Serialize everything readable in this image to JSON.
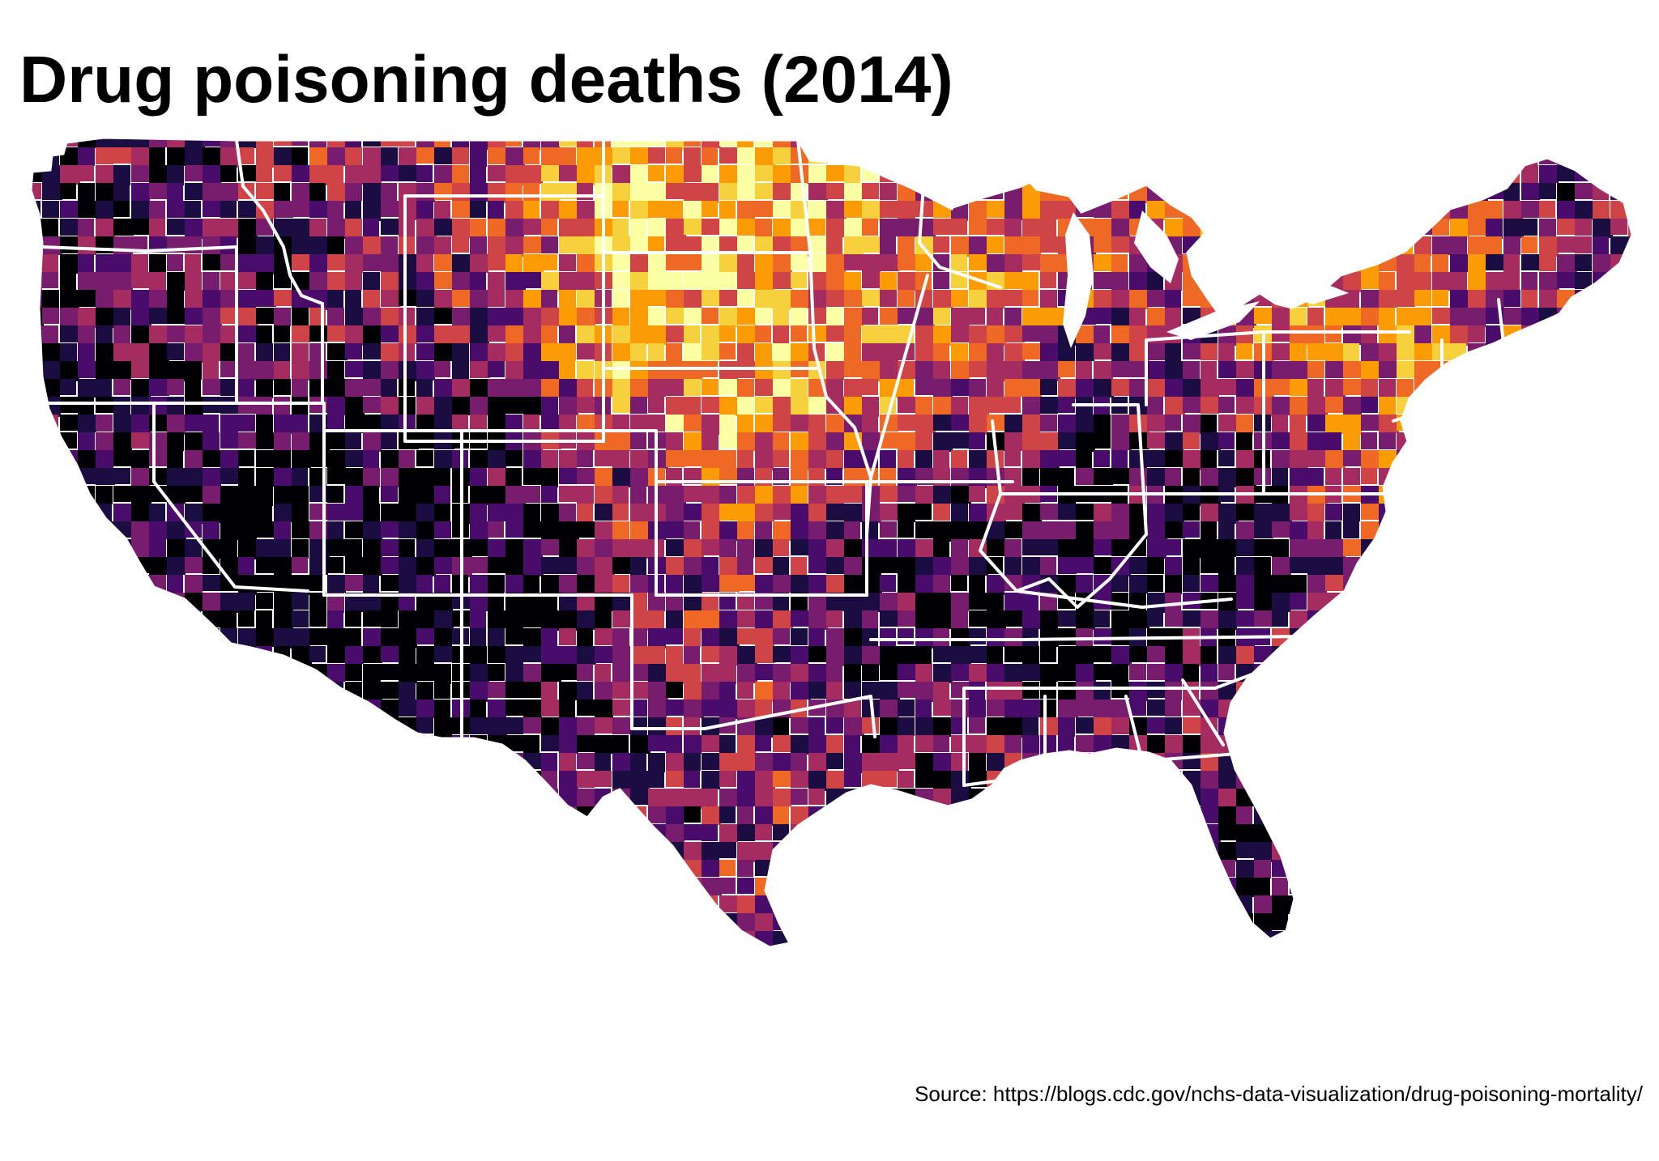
{
  "title": "Drug poisoning deaths (2014)",
  "source": "Source: https://blogs.cdc.gov/nchs-data-visualization/drug-poisoning-mortality/",
  "palette": {
    "name": "inferno",
    "colors": [
      "#000004",
      "#1b0c41",
      "#4a0c6b",
      "#781c6d",
      "#a52c60",
      "#cf4446",
      "#ed6925",
      "#fb9b06",
      "#f7d13d",
      "#fcffa4"
    ]
  },
  "map": {
    "region": "contiguous-united-states",
    "unit": "county",
    "state_border_color": "#ffffff",
    "regional_pattern": [
      {
        "area": "Appalachia (Kentucky, West Virginia, Tennessee)",
        "level": "darkest"
      },
      {
        "area": "Southwest (Nevada, Utah, Arizona, New Mexico)",
        "level": "dark"
      },
      {
        "area": "Oklahoma",
        "level": "dark"
      },
      {
        "area": "Florida",
        "level": "dark"
      },
      {
        "area": "Great Plains (Dakotas, Nebraska, Kansas)",
        "level": "lightest"
      },
      {
        "area": "Iowa, Minnesota",
        "level": "light"
      },
      {
        "area": "Upstate New York",
        "level": "light"
      },
      {
        "area": "Texas",
        "level": "mixed"
      }
    ]
  }
}
